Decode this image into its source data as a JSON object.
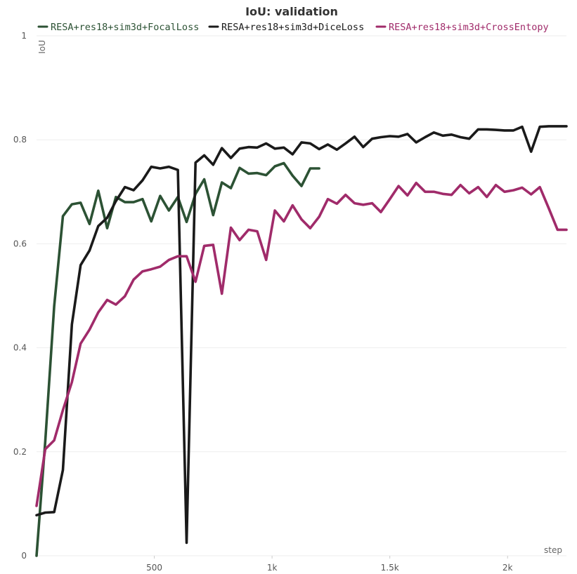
{
  "chart_data": {
    "type": "line",
    "title": "IoU: validation",
    "xlabel": "step",
    "ylabel": "IoU",
    "xlim": [
      0,
      2250
    ],
    "ylim": [
      0,
      1
    ],
    "xticks": [
      {
        "value": 500,
        "label": "500"
      },
      {
        "value": 1000,
        "label": "1k"
      },
      {
        "value": 1500,
        "label": "1.5k"
      },
      {
        "value": 2000,
        "label": "2k"
      }
    ],
    "yticks": [
      {
        "value": 0,
        "label": "0"
      },
      {
        "value": 0.2,
        "label": "0.2"
      },
      {
        "value": 0.4,
        "label": "0.4"
      },
      {
        "value": 0.6,
        "label": "0.6"
      },
      {
        "value": 0.8,
        "label": "0.8"
      },
      {
        "value": 1,
        "label": "1"
      }
    ],
    "grid": true,
    "legend_position": "top",
    "series": [
      {
        "name": "RESA+res18+sim3d+FocalLoss",
        "color": "#2c5234",
        "x": [
          0,
          37,
          75,
          112,
          150,
          187,
          225,
          262,
          300,
          337,
          375,
          412,
          450,
          487,
          525,
          562,
          600,
          637,
          675,
          712,
          750,
          787,
          825,
          862,
          900,
          937,
          975,
          1012,
          1050,
          1087,
          1125,
          1162,
          1200
        ],
        "y": [
          0.0,
          0.22,
          0.48,
          0.653,
          0.676,
          0.679,
          0.638,
          0.702,
          0.63,
          0.69,
          0.68,
          0.68,
          0.686,
          0.643,
          0.692,
          0.664,
          0.69,
          0.642,
          0.696,
          0.724,
          0.655,
          0.718,
          0.707,
          0.746,
          0.735,
          0.736,
          0.732,
          0.749,
          0.755,
          0.731,
          0.711,
          0.745,
          0.745
        ]
      },
      {
        "name": "RESA+res18+sim3d+DiceLoss",
        "color": "#1a1a1a",
        "x": [
          0,
          37,
          75,
          112,
          150,
          187,
          225,
          262,
          300,
          337,
          375,
          412,
          450,
          487,
          525,
          562,
          600,
          637,
          675,
          712,
          750,
          787,
          825,
          862,
          900,
          937,
          975,
          1012,
          1050,
          1087,
          1125,
          1162,
          1200,
          1237,
          1275,
          1312,
          1350,
          1387,
          1425,
          1462,
          1500,
          1537,
          1575,
          1612,
          1650,
          1687,
          1725,
          1762,
          1800,
          1837,
          1875,
          1912,
          1950,
          1987,
          2025,
          2062,
          2100,
          2137,
          2175,
          2212,
          2250
        ],
        "y": [
          0.078,
          0.083,
          0.084,
          0.165,
          0.445,
          0.559,
          0.587,
          0.634,
          0.65,
          0.682,
          0.709,
          0.703,
          0.722,
          0.748,
          0.745,
          0.748,
          0.742,
          0.025,
          0.756,
          0.77,
          0.752,
          0.784,
          0.765,
          0.783,
          0.786,
          0.785,
          0.793,
          0.783,
          0.785,
          0.772,
          0.795,
          0.793,
          0.782,
          0.791,
          0.781,
          0.793,
          0.806,
          0.786,
          0.802,
          0.805,
          0.807,
          0.806,
          0.811,
          0.795,
          0.805,
          0.814,
          0.808,
          0.81,
          0.805,
          0.802,
          0.82,
          0.82,
          0.819,
          0.818,
          0.818,
          0.825,
          0.777,
          0.825,
          0.826,
          0.826,
          0.826
        ]
      },
      {
        "name": "RESA+res18+sim3d+CrossEntopy",
        "color": "#a02b6a",
        "x": [
          0,
          37,
          75,
          112,
          150,
          187,
          225,
          262,
          300,
          337,
          375,
          412,
          450,
          487,
          525,
          562,
          600,
          637,
          675,
          712,
          750,
          787,
          825,
          862,
          900,
          937,
          975,
          1012,
          1050,
          1087,
          1125,
          1162,
          1200,
          1237,
          1275,
          1312,
          1350,
          1387,
          1425,
          1462,
          1500,
          1537,
          1575,
          1612,
          1650,
          1687,
          1725,
          1762,
          1800,
          1837,
          1875,
          1912,
          1950,
          1987,
          2025,
          2062,
          2100,
          2137,
          2175,
          2212,
          2250
        ],
        "y": [
          0.096,
          0.205,
          0.222,
          0.28,
          0.334,
          0.408,
          0.435,
          0.468,
          0.492,
          0.483,
          0.499,
          0.531,
          0.547,
          0.551,
          0.556,
          0.569,
          0.576,
          0.576,
          0.527,
          0.596,
          0.598,
          0.504,
          0.631,
          0.607,
          0.627,
          0.624,
          0.569,
          0.664,
          0.643,
          0.674,
          0.647,
          0.63,
          0.652,
          0.686,
          0.677,
          0.694,
          0.678,
          0.675,
          0.678,
          0.661,
          0.686,
          0.711,
          0.693,
          0.717,
          0.7,
          0.7,
          0.696,
          0.694,
          0.713,
          0.697,
          0.709,
          0.69,
          0.713,
          0.7,
          0.703,
          0.708,
          0.695,
          0.709,
          0.668,
          0.627,
          0.627
        ]
      }
    ]
  }
}
